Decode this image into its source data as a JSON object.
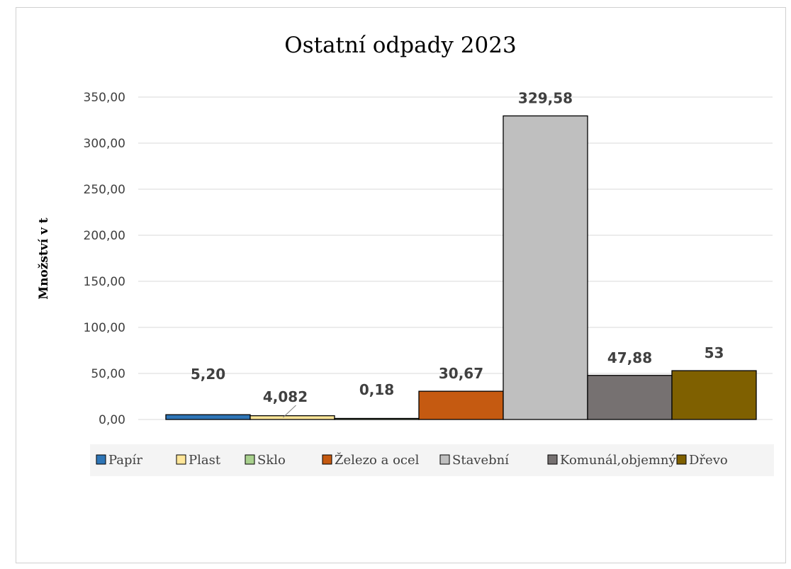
{
  "chart_data": {
    "type": "bar",
    "title": "Ostatní odpady 2023",
    "xlabel": "",
    "ylabel": "Množství v t",
    "ylim": [
      0,
      350
    ],
    "yticks": [
      "0,00",
      "50,00",
      "100,00",
      "150,00",
      "200,00",
      "250,00",
      "300,00",
      "350,00"
    ],
    "grid": true,
    "legend_position": "bottom",
    "series": [
      {
        "name": "Papír",
        "value": 5.2,
        "label": "5,20",
        "color": "#2e75b6"
      },
      {
        "name": "Plast",
        "value": 4.082,
        "label": "4,082",
        "color": "#ffe699"
      },
      {
        "name": "Sklo",
        "value": 0.18,
        "label": "0,18",
        "color": "#a9d18e"
      },
      {
        "name": "Železo a ocel",
        "value": 30.67,
        "label": "30,67",
        "color": "#c55a11"
      },
      {
        "name": "Stavební",
        "value": 329.58,
        "label": "329,58",
        "color": "#bfbfbf"
      },
      {
        "name": "Komunál,objemný",
        "value": 47.88,
        "label": "47,88",
        "color": "#767171"
      },
      {
        "name": "Dřevo",
        "value": 53,
        "label": "53",
        "color": "#7f6000"
      }
    ]
  }
}
